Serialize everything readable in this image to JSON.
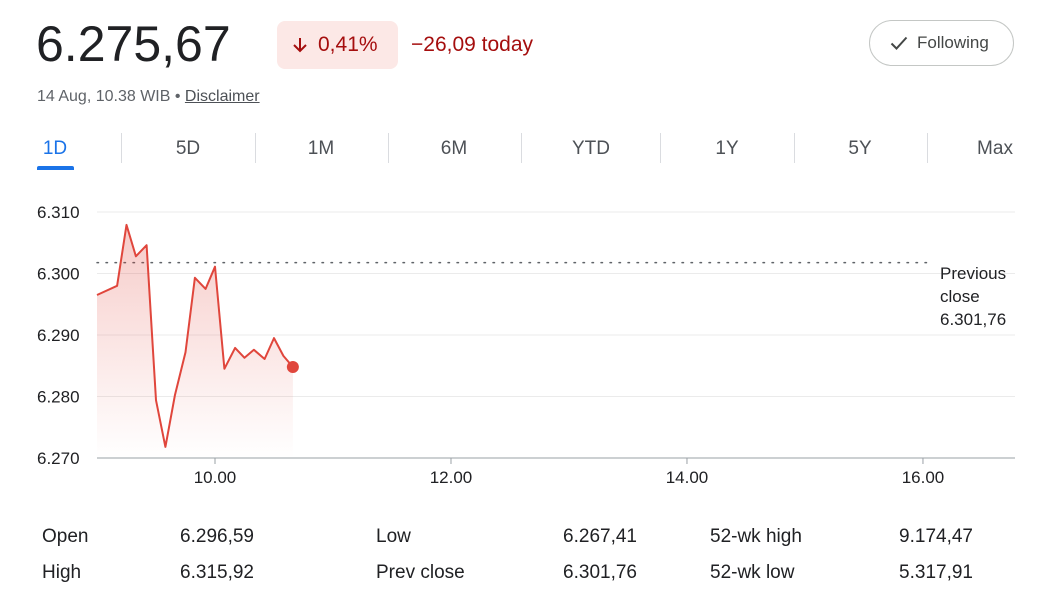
{
  "header": {
    "price": "6.275,67",
    "change_percent": "0,41%",
    "change_today": "−26,09 today",
    "follow_button": "Following",
    "timestamp": "14 Aug, 10.38 WIB •",
    "disclaimer": "Disclaimer"
  },
  "tabs": [
    "1D",
    "5D",
    "1M",
    "6M",
    "YTD",
    "1Y",
    "5Y",
    "Max"
  ],
  "chart_data": {
    "type": "line",
    "color": "#e0463c",
    "x": [
      9.0,
      9.17,
      9.25,
      9.33,
      9.42,
      9.5,
      9.58,
      9.66,
      9.75,
      9.83,
      9.92,
      10.0,
      10.08,
      10.17,
      10.25,
      10.33,
      10.42,
      10.5,
      10.58,
      10.66
    ],
    "values": [
      6296.5,
      6298.0,
      6307.9,
      6302.8,
      6304.6,
      6279.4,
      6271.8,
      6280.2,
      6287.2,
      6299.3,
      6297.5,
      6301.1,
      6284.5,
      6287.9,
      6286.3,
      6287.6,
      6286.1,
      6289.5,
      6286.6,
      6284.8
    ],
    "xlim": [
      9,
      16.78
    ],
    "ylim": [
      6270,
      6310
    ],
    "xticks": [
      {
        "value": 10,
        "label": "10.00"
      },
      {
        "value": 12,
        "label": "12.00"
      },
      {
        "value": 14,
        "label": "14.00"
      },
      {
        "value": 16,
        "label": "16.00"
      }
    ],
    "yticks": [
      {
        "value": 6270,
        "label": "6.270"
      },
      {
        "value": 6280,
        "label": "6.280"
      },
      {
        "value": 6290,
        "label": "6.290"
      },
      {
        "value": 6300,
        "label": "6.300"
      },
      {
        "value": 6310,
        "label": "6.310"
      }
    ],
    "grid": true,
    "previous_close": {
      "value": 6301.76,
      "label": "Previous close",
      "value_label": "6.301,76"
    }
  },
  "stats": [
    [
      {
        "label": "Open",
        "value": "6.296,59"
      },
      {
        "label": "High",
        "value": "6.315,92"
      }
    ],
    [
      {
        "label": "Low",
        "value": "6.267,41"
      },
      {
        "label": "Prev close",
        "value": "6.301,76"
      }
    ],
    [
      {
        "label": "52-wk high",
        "value": "9.174,47"
      },
      {
        "label": "52-wk low",
        "value": "5.317,91"
      }
    ]
  ]
}
